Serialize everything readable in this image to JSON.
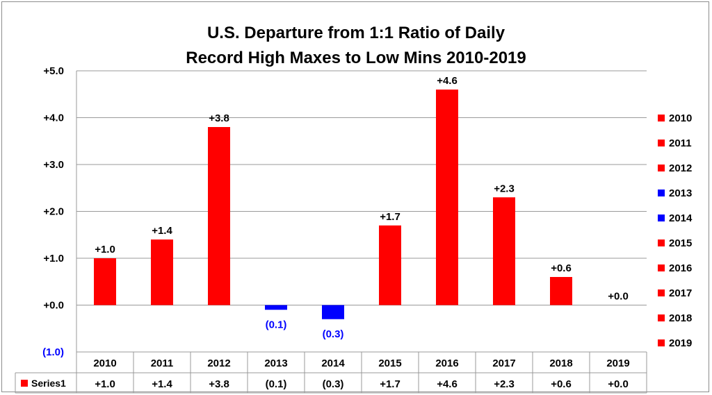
{
  "chart_data": {
    "type": "bar",
    "title_lines": [
      "U.S. Departure from 1:1 Ratio of Daily",
      "Record High Maxes to Low Mins 2010-2019"
    ],
    "categories": [
      "2010",
      "2011",
      "2012",
      "2013",
      "2014",
      "2015",
      "2016",
      "2017",
      "2018",
      "2019"
    ],
    "series": [
      {
        "name": "Series1",
        "values": [
          1.0,
          1.4,
          3.8,
          -0.1,
          -0.3,
          1.7,
          4.6,
          2.3,
          0.6,
          0.0
        ],
        "labels": [
          "+1.0",
          "+1.4",
          "+3.8",
          "(0.1)",
          "(0.3)",
          "+1.7",
          "+4.6",
          "+2.3",
          "+0.6",
          "+0.0"
        ]
      }
    ],
    "ylim": [
      -1.0,
      5.0
    ],
    "yticks": [
      -1.0,
      0.0,
      1.0,
      2.0,
      3.0,
      4.0,
      5.0
    ],
    "ytick_labels": [
      "(1.0)",
      "+0.0",
      "+1.0",
      "+2.0",
      "+3.0",
      "+4.0",
      "+5.0"
    ],
    "grid": true,
    "legend": {
      "placement": "right",
      "entries": [
        "2010",
        "2011",
        "2012",
        "2013",
        "2014",
        "2015",
        "2016",
        "2017",
        "2018",
        "2019"
      ]
    },
    "data_table": true,
    "colors": {
      "positive": "#ff0000",
      "negative": "#0000ff",
      "grid": "#999999",
      "text": "#000000"
    }
  }
}
